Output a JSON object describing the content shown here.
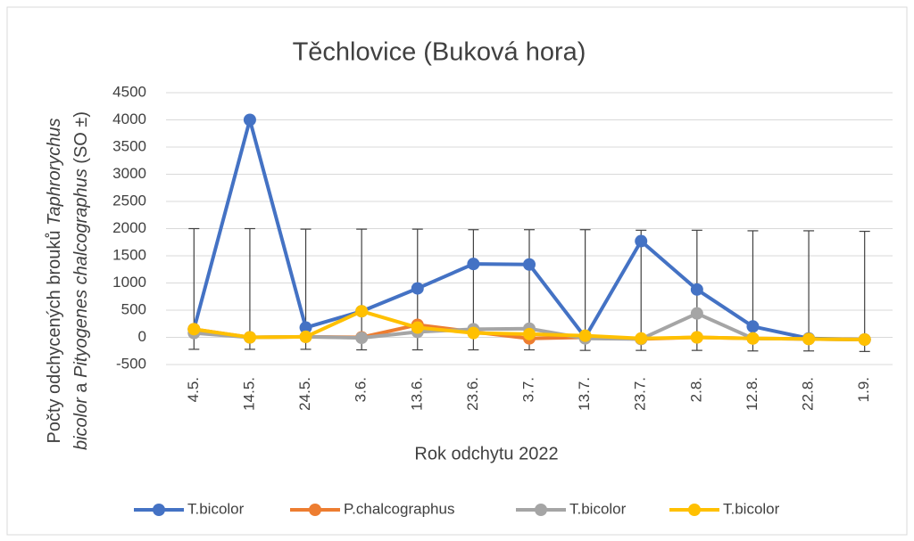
{
  "chart_data": {
    "type": "line",
    "title": "Těchlovice (Buková hora)",
    "xlabel": "Rok odchytu 2022",
    "ylabel_lines": [
      [
        {
          "text": "Počty odchycených brouků ",
          "italic": false
        },
        {
          "text": "Taphrorychus",
          "italic": true
        }
      ],
      [
        {
          "text": "bicolor",
          "italic": true
        },
        {
          "text": " a ",
          "italic": false
        },
        {
          "text": "Pityogenes chalcographus",
          "italic": true
        },
        {
          "text": " (SO ±)",
          "italic": false
        }
      ]
    ],
    "categories": [
      "4.5.",
      "14.5.",
      "24.5.",
      "3.6.",
      "13.6.",
      "23.6.",
      "3.7.",
      "13.7.",
      "23.7.",
      "2.8.",
      "12.8.",
      "22.8.",
      "1.9."
    ],
    "series": [
      {
        "name": "T.bicolor",
        "color": "#4472c4",
        "values": [
          150,
          4000,
          180,
          480,
          900,
          1350,
          1340,
          0,
          1770,
          880,
          200,
          -20,
          -40
        ]
      },
      {
        "name": "P.chalcographus",
        "color": "#ed7d31",
        "values": [
          150,
          0,
          10,
          0,
          230,
          100,
          -20,
          0,
          -30,
          0,
          -20,
          -30,
          -40
        ]
      },
      {
        "name": "T.bicolor",
        "color": "#a5a5a5",
        "values": [
          80,
          0,
          10,
          -10,
          100,
          150,
          160,
          -20,
          -30,
          440,
          -20,
          -30,
          -40
        ]
      },
      {
        "name": "T.bicolor",
        "color": "#ffc000",
        "values": [
          150,
          0,
          10,
          480,
          180,
          80,
          60,
          30,
          -20,
          0,
          -20,
          -30,
          -40
        ]
      }
    ],
    "error_bars": {
      "color": "#404040",
      "low": [
        -220,
        -220,
        -220,
        -230,
        -230,
        -230,
        -230,
        -240,
        -240,
        -240,
        -250,
        -250,
        -260
      ],
      "high": [
        2000,
        2000,
        1990,
        1990,
        1990,
        1980,
        1980,
        1980,
        1970,
        1970,
        1960,
        1960,
        1950
      ]
    },
    "ylim": [
      -500,
      4500
    ],
    "yticks": [
      -500,
      0,
      500,
      1000,
      1500,
      2000,
      2500,
      3000,
      3500,
      4000,
      4500
    ],
    "grid": true,
    "legend": "bottom"
  }
}
